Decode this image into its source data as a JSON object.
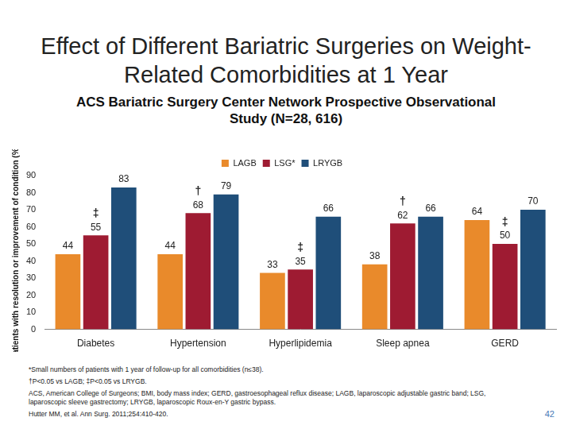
{
  "chart_data": {
    "type": "bar",
    "title": "Effect of Different Bariatric Surgeries on Weight-Related Comorbidities at 1 Year",
    "subtitle": "ACS Bariatric Surgery Center Network Prospective Observational Study (N=28, 616)",
    "y_label": "Patients with resolution or improvement of condition (%)",
    "categories": [
      "Diabetes",
      "Hypertension",
      "Hyperlipidemia",
      "Sleep apnea",
      "GERD"
    ],
    "series": [
      {
        "name": "LAGB",
        "color": "#e98a2b",
        "values": [
          44,
          44,
          33,
          38,
          64
        ]
      },
      {
        "name": "LSG*",
        "color": "#9e1b32",
        "values": [
          55,
          68,
          35,
          62,
          50
        ]
      },
      {
        "name": "LRYGB",
        "color": "#1f4e79",
        "values": [
          83,
          79,
          66,
          66,
          70
        ]
      }
    ],
    "annotations": [
      {
        "series": "LSG*",
        "category": "Diabetes",
        "text": "‡"
      },
      {
        "series": "LSG*",
        "category": "Hypertension",
        "text": "†"
      },
      {
        "series": "LSG*",
        "category": "Hyperlipidemia",
        "text": "‡"
      },
      {
        "series": "LSG*",
        "category": "Sleep apnea",
        "text": "†"
      },
      {
        "series": "LSG*",
        "category": "GERD",
        "text": "‡"
      }
    ],
    "ylim": [
      0,
      90
    ],
    "yticks": [
      0,
      10,
      20,
      30,
      40,
      50,
      60,
      70,
      80,
      90
    ],
    "grid": false,
    "legend": "top",
    "data_labels": true
  },
  "footnotes": [
    "*Small numbers of patients with 1 year of follow-up for all comorbidities (n≤38).",
    "†P<0.05 vs LAGB; ‡P<0.05 vs LRYGB.",
    "ACS, American College of Surgeons; BMI, body mass index; GERD, gastroesophageal reflux disease; LAGB, laparoscopic adjustable gastric band; LSG, laparoscopic sleeve gastrectomy; LRYGB, laparoscopic Roux-en-Y gastric bypass.",
    "Hutter MM, et al. Ann Surg. 2011;254:410-420."
  ],
  "page_number": "42"
}
